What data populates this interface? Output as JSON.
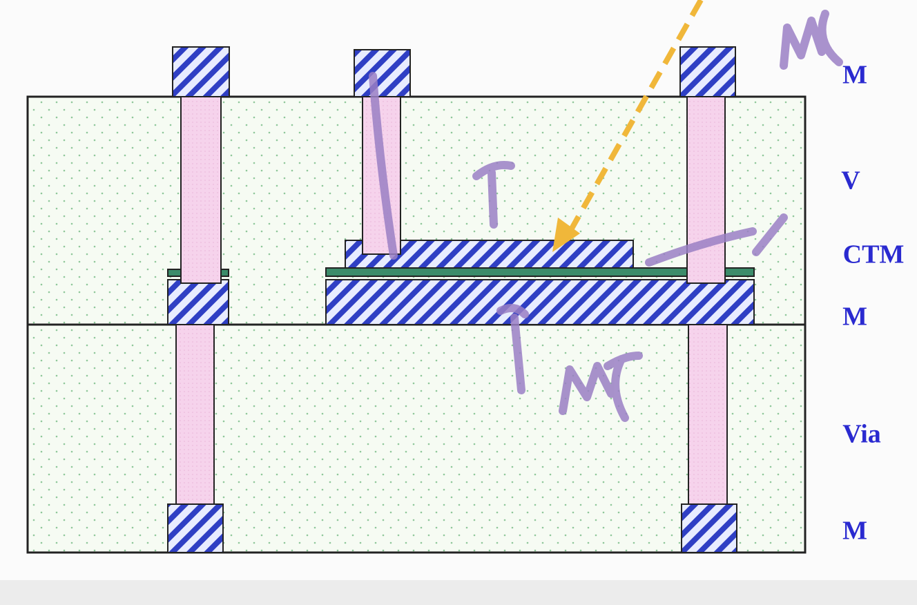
{
  "labels": [
    "M",
    "V",
    "CTM",
    "M",
    "Via",
    "M"
  ]
}
